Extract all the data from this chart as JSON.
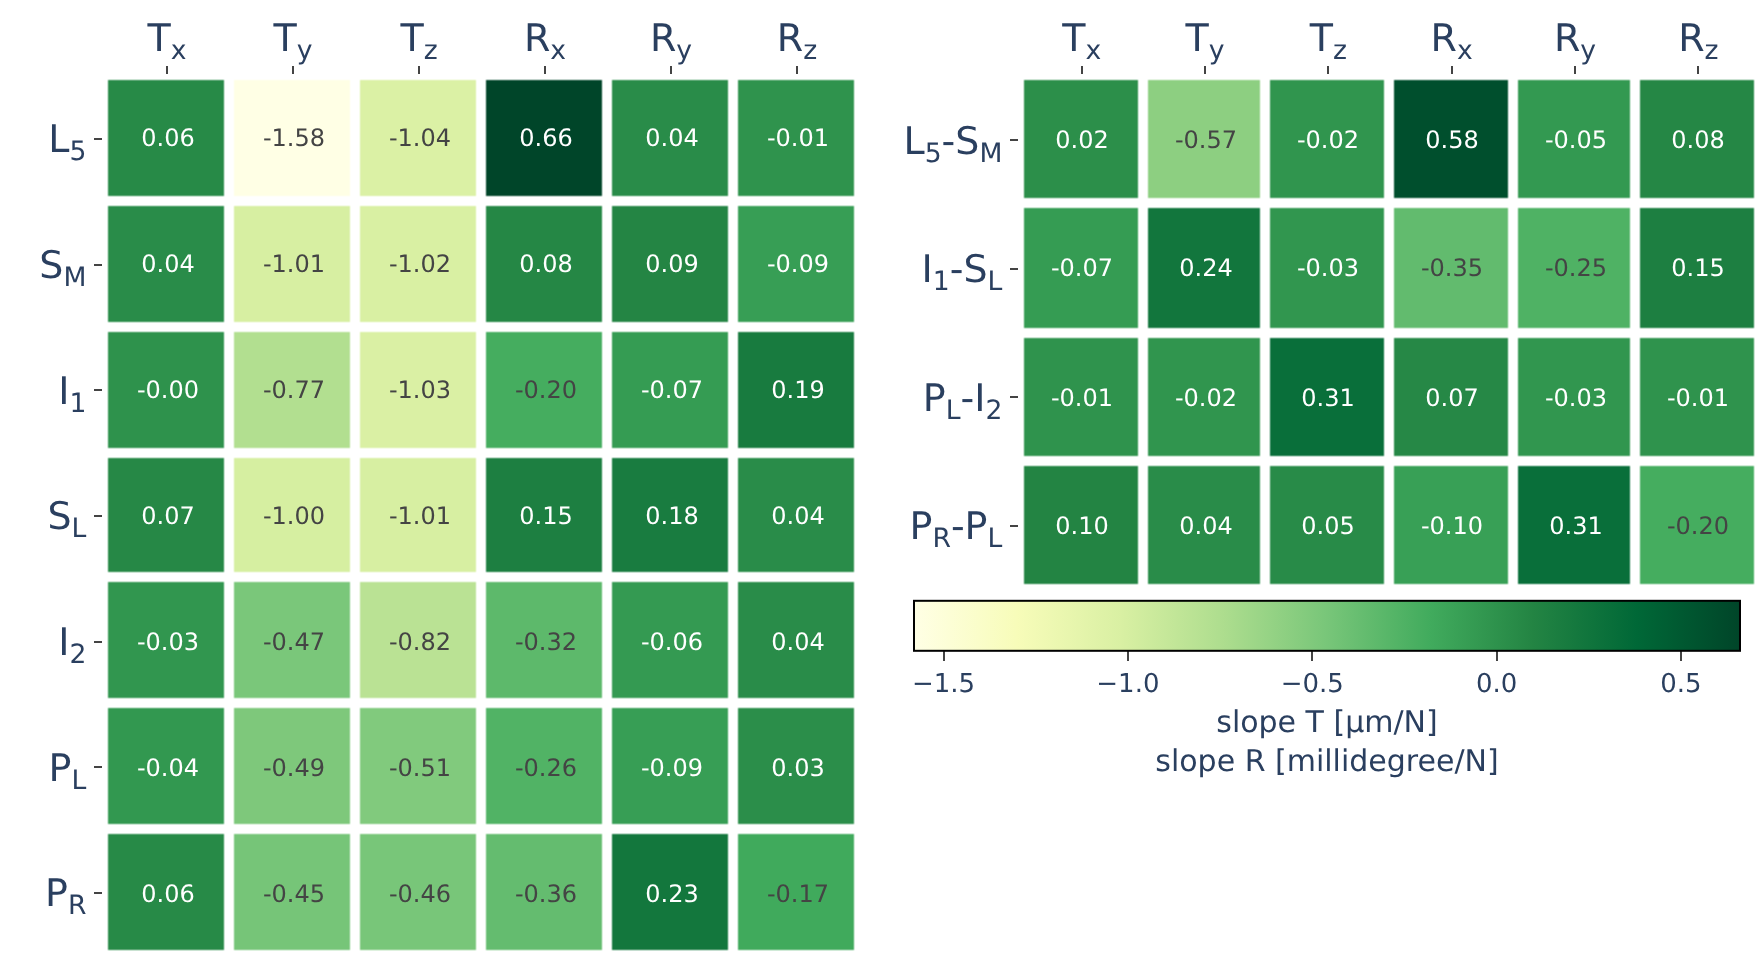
{
  "chart_data": [
    {
      "type": "heatmap",
      "categories": [
        "T$_{x}$",
        "T$_{y}$",
        "T$_{z}$",
        "R$_{x}$",
        "R$_{y}$",
        "R$_{z}$"
      ],
      "y_categories": [
        "L$_{5}$",
        "S$_{M}$",
        "I$_{1}$",
        "S$_{L}$",
        "I$_{2}$",
        "P$_{L}$",
        "P$_{R}$"
      ],
      "cells": [
        [
          0.06,
          -1.58,
          -1.04,
          0.66,
          0.04,
          -0.01
        ],
        [
          0.04,
          -1.01,
          -1.02,
          0.08,
          0.09,
          -0.09
        ],
        [
          0.0,
          -0.77,
          -1.03,
          -0.2,
          -0.07,
          0.19
        ],
        [
          0.07,
          -1.0,
          -1.01,
          0.15,
          0.18,
          0.04
        ],
        [
          -0.03,
          -0.47,
          -0.82,
          -0.32,
          -0.06,
          0.04
        ],
        [
          -0.04,
          -0.49,
          -0.51,
          -0.26,
          -0.09,
          0.03
        ],
        [
          0.06,
          -0.45,
          -0.46,
          -0.36,
          0.23,
          -0.17
        ]
      ],
      "cell_labels": [
        [
          "0.06",
          "-1.58",
          "-1.04",
          "0.66",
          "0.04",
          "-0.01"
        ],
        [
          "0.04",
          "-1.01",
          "-1.02",
          "0.08",
          "0.09",
          "-0.09"
        ],
        [
          "-0.00",
          "-0.77",
          "-1.03",
          "-0.20",
          "-0.07",
          "0.19"
        ],
        [
          "0.07",
          "-1.00",
          "-1.01",
          "0.15",
          "0.18",
          "0.04"
        ],
        [
          "-0.03",
          "-0.47",
          "-0.82",
          "-0.32",
          "-0.06",
          "0.04"
        ],
        [
          "-0.04",
          "-0.49",
          "-0.51",
          "-0.26",
          "-0.09",
          "0.03"
        ],
        [
          "0.06",
          "-0.45",
          "-0.46",
          "-0.36",
          "0.23",
          "-0.17"
        ]
      ]
    },
    {
      "type": "heatmap",
      "categories": [
        "T$_{x}$",
        "T$_{y}$",
        "T$_{z}$",
        "R$_{x}$",
        "R$_{y}$",
        "R$_{z}$"
      ],
      "y_categories": [
        "L$_{5}$-S$_{M}$",
        "I$_{1}$-S$_{L}$",
        "P$_{L}$-I$_{2}$",
        "P$_{R}$-P$_{L}$"
      ],
      "cells": [
        [
          0.02,
          -0.57,
          -0.02,
          0.58,
          -0.05,
          0.08
        ],
        [
          -0.07,
          0.24,
          -0.03,
          -0.35,
          -0.25,
          0.15
        ],
        [
          -0.01,
          -0.02,
          0.31,
          0.07,
          -0.03,
          -0.01
        ],
        [
          0.1,
          0.04,
          0.05,
          -0.1,
          0.31,
          -0.2
        ]
      ],
      "cell_labels": [
        [
          "0.02",
          "-0.57",
          "-0.02",
          "0.58",
          "-0.05",
          "0.08"
        ],
        [
          "-0.07",
          "0.24",
          "-0.03",
          "-0.35",
          "-0.25",
          "0.15"
        ],
        [
          "-0.01",
          "-0.02",
          "0.31",
          "0.07",
          "-0.03",
          "-0.01"
        ],
        [
          "0.10",
          "0.04",
          "0.05",
          "-0.10",
          "0.31",
          "-0.20"
        ]
      ],
      "clim": [
        -1.58,
        0.66
      ],
      "cticks": [
        {
          "value": -1.5,
          "label": "−1.5"
        },
        {
          "value": -1.0,
          "label": "−1.0"
        },
        {
          "value": -0.5,
          "label": "−0.5"
        },
        {
          "value": 0.0,
          "label": "0.0"
        },
        {
          "value": 0.5,
          "label": "0.5"
        }
      ],
      "clabel": "slope T [µm/N]\nslope R [millidegree/N]"
    }
  ]
}
